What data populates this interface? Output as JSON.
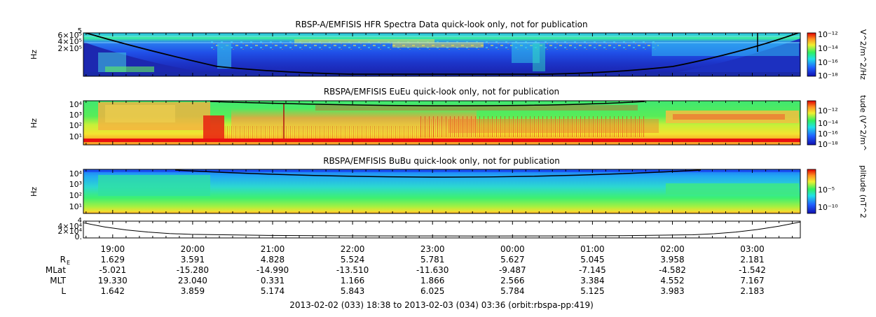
{
  "chart_data": [
    {
      "type": "heatmap",
      "title": "RBSP-A/EMFISIS  HFR Spectra Data quick-look only, not for publication",
      "ylabel": "Hz",
      "y_ticks": [
        "6×10⁵",
        "4×10⁵",
        "2×10⁵"
      ],
      "y_top_label": "5",
      "colorbar": {
        "label": "V^2/m^2/Hz",
        "ticks": [
          "10⁻¹²",
          "10⁻¹⁴",
          "10⁻¹⁶",
          "10⁻¹⁸"
        ],
        "range_exp": [
          -18,
          -12
        ]
      },
      "overlay": "upper hybrid / plasma frequency trace (black)"
    },
    {
      "type": "heatmap",
      "title": "RBSPA/EMFISIS  EuEu quick-look only, not for publication",
      "ylabel": "Hz",
      "y_ticks": [
        "10⁴",
        "10³",
        "10²",
        "10¹"
      ],
      "colorbar": {
        "label": "tude (V^2/m^",
        "ticks": [
          "10⁻¹²",
          "10⁻¹⁴",
          "10⁻¹⁶",
          "10⁻¹⁸"
        ],
        "range_exp": [
          -18,
          -12
        ]
      },
      "overlay": "electron cyclotron frequency trace (black)"
    },
    {
      "type": "heatmap",
      "title": "RBSPA/EMFISIS  BuBu quick-look only, not for publication",
      "ylabel": "Hz",
      "y_ticks": [
        "10⁴",
        "10³",
        "10²",
        "10¹"
      ],
      "colorbar": {
        "label": "plitude (nT^2",
        "ticks": [
          "10⁻⁵",
          "10⁻¹⁰"
        ],
        "range_exp": [
          -12,
          -3
        ]
      },
      "overlay": "electron cyclotron frequency trace (black)"
    },
    {
      "type": "line",
      "title": "",
      "y_ticks": [
        "4×10⁴",
        "2×10⁴",
        "0."
      ],
      "y_top_label": "4",
      "ylim": [
        0,
        40000
      ],
      "series_description": "magnetic field magnitude (nT)",
      "x": [
        0.0,
        0.03,
        0.06,
        0.09,
        0.12,
        0.15,
        0.25,
        0.35,
        0.45,
        0.55,
        0.65,
        0.75,
        0.85,
        0.88,
        0.91,
        0.94,
        0.97,
        1.0
      ],
      "values": [
        36000,
        26000,
        19000,
        14000,
        10500,
        8500,
        6200,
        5200,
        4800,
        4700,
        4900,
        5400,
        7500,
        10000,
        14000,
        20000,
        28000,
        38000
      ]
    }
  ],
  "time_axis": {
    "ticks": [
      "19:00",
      "20:00",
      "21:00",
      "22:00",
      "23:00",
      "00:00",
      "01:00",
      "02:00",
      "03:00"
    ],
    "start_hours": 18.6333,
    "end_hours": 27.6,
    "first_tick_hours": 19
  },
  "ephemeris": [
    {
      "label_main": "R",
      "label_sub": "E",
      "values": [
        "1.629",
        "3.591",
        "4.828",
        "5.524",
        "5.781",
        "5.627",
        "5.045",
        "3.958",
        "2.181"
      ]
    },
    {
      "label_main": "MLat",
      "label_sub": "",
      "values": [
        "-5.021",
        "-15.280",
        "-14.990",
        "-13.510",
        "-11.630",
        "-9.487",
        "-7.145",
        "-4.582",
        "-1.542"
      ]
    },
    {
      "label_main": "MLT",
      "label_sub": "",
      "values": [
        "19.330",
        "23.040",
        "0.331",
        "1.166",
        "1.866",
        "2.566",
        "3.384",
        "4.552",
        "7.167"
      ]
    },
    {
      "label_main": "L",
      "label_sub": "",
      "values": [
        "1.642",
        "3.859",
        "5.174",
        "5.843",
        "6.025",
        "5.784",
        "5.125",
        "3.983",
        "2.183"
      ]
    }
  ],
  "footer": "2013-02-02 (033) 18:38 to 2013-02-03 (034) 03:36 (orbit:rbspa-pp:419)",
  "colors": {
    "dark_blue": "#1a1aa8",
    "blue": "#2a5cf0",
    "cyan": "#2bd4e0",
    "green": "#2ee85c",
    "yellow": "#f0e832",
    "orange": "#f89a2a",
    "red": "#e81a1a"
  }
}
